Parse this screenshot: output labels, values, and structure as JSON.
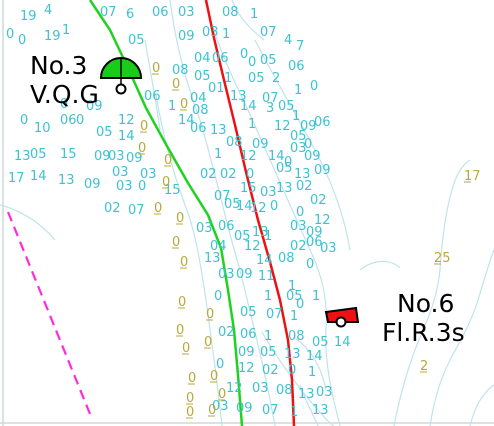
{
  "colors": {
    "background": "#ffffff",
    "depth_text": "#3cc3d2",
    "drying_text": "#b9a83c",
    "contour": "#bfe3ec",
    "green_line": "#1fd21f",
    "red_line": "#ee1111",
    "magenta_line": "#ff2bd8",
    "green_buoy": "#19cc19",
    "red_buoy": "#ee1111",
    "border": "#cfd8dc"
  },
  "buoys": [
    {
      "id": "no3",
      "name": "No.3",
      "light": "V.Q.G",
      "shape": "green-buoy-icon"
    },
    {
      "id": "no6",
      "name": "No.6",
      "light": "Fl.R.3s",
      "shape": "red-buoy-icon"
    }
  ],
  "soundings": [
    "19",
    "4",
    "07",
    "6",
    "06",
    "03",
    "08",
    "1",
    "0",
    "0",
    "19",
    "1",
    "05",
    "09",
    "03",
    "1",
    "07",
    "4",
    "7",
    "04",
    "06",
    "0",
    "0",
    "05",
    "06",
    "08",
    "05",
    "1",
    "05",
    "2",
    "01",
    "04",
    "13",
    "07",
    "1",
    "0",
    "05",
    "0",
    "09",
    "06",
    "1",
    "08",
    "14",
    "3",
    "1",
    "09",
    "06",
    "0",
    "12",
    "14",
    "0",
    "10",
    "05",
    "14",
    "06",
    "13",
    "1",
    "12",
    "05",
    "0",
    "06",
    "08",
    "09",
    "03",
    "13",
    "05",
    "15",
    "09",
    "03",
    "09",
    "1",
    "12",
    "14",
    "0",
    "09",
    "03",
    "03",
    "17",
    "14",
    "13",
    "09",
    "03",
    "0",
    "15",
    "02",
    "02",
    "0",
    "05",
    "13",
    "09",
    "15",
    "03",
    "13",
    "02",
    "02",
    "02",
    "07",
    "07",
    "05",
    "14",
    "12",
    "0",
    "0",
    "03",
    "06",
    "13",
    "1",
    "03",
    "09",
    "12",
    "05",
    "04",
    "12",
    "02",
    "06",
    "03",
    "13",
    "14",
    "08",
    "0",
    "03",
    "09",
    "11",
    "1",
    "0",
    "1",
    "05",
    "0",
    "1",
    "05",
    "07",
    "1",
    "02",
    "06",
    "1",
    "08",
    "05",
    "14",
    "09",
    "05",
    "13",
    "14",
    "0",
    "12",
    "02",
    "0",
    "1",
    "12",
    "03",
    "08",
    "13",
    "03",
    "03",
    "09",
    "07",
    "1",
    "13",
    "13",
    "12",
    "1",
    "08",
    "14",
    "14",
    "02",
    "03",
    "09",
    "13",
    "09"
  ],
  "drying_heights": [
    "0",
    "0",
    "0",
    "0",
    "0",
    "0",
    "0",
    "0",
    "0",
    "0",
    "0",
    "0",
    "0",
    "0",
    "0",
    "0",
    "0",
    "0",
    "0",
    "0",
    "0",
    "0",
    "17",
    "25",
    "2"
  ]
}
